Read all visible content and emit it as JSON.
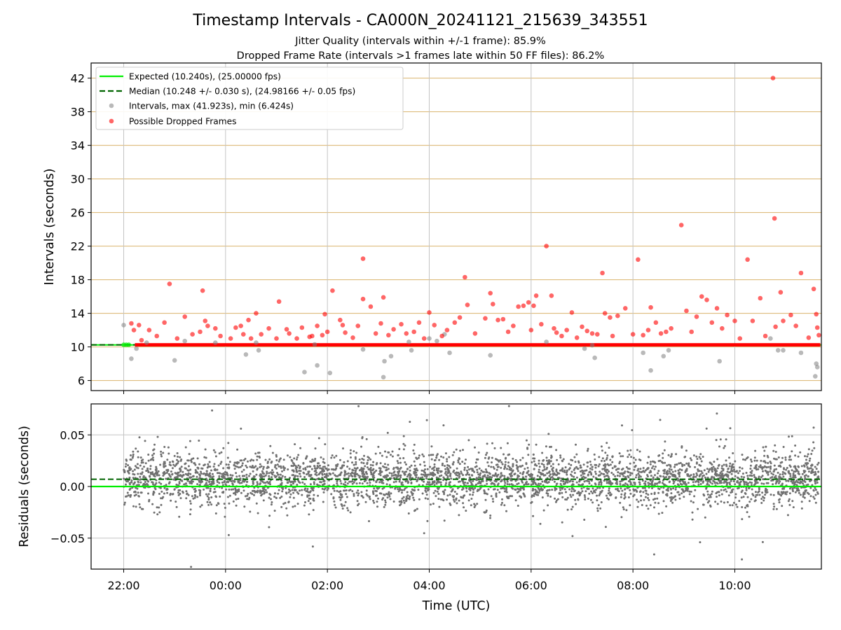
{
  "figure": {
    "title": "Timestamp Intervals - CA000N_20241121_215639_343551",
    "subtitle_jitter": "Jitter Quality (intervals within +/-1 frame): 85.9%",
    "subtitle_dropped": "Dropped Frame Rate (intervals >1 frames late within 50 FF files): 86.2%"
  },
  "legend": {
    "expected": "Expected (10.240s), (25.00000 fps)",
    "median": "Median (10.248 +/- 0.030 s), (24.98166 +/- 0.05 fps)",
    "intervals": "Intervals, max (41.923s), min (6.424s)",
    "dropped": "Possible Dropped Frames"
  },
  "colors": {
    "expected": "#00ee00",
    "median": "#006400",
    "intervals": "#808080",
    "dropped": "#ff0000",
    "residuals": "#707070",
    "hgrid_top": "#d9b36b",
    "vgrid": "#c4c4c4"
  },
  "chart_data": [
    {
      "type": "scatter",
      "ylabel": "Intervals (seconds)",
      "ylim": [
        4.8,
        43.8
      ],
      "yticks": [
        6,
        10,
        14,
        18,
        22,
        26,
        30,
        34,
        38,
        42
      ],
      "ytick_labels": [
        "6",
        "10",
        "14",
        "18",
        "22",
        "26",
        "30",
        "34",
        "38",
        "42"
      ],
      "xlim_hours": [
        -2.64,
        11.7
      ],
      "expected_line": 10.24,
      "median_line": 10.248,
      "baseline_band": [
        10.05,
        10.45
      ],
      "legend_position": "upper left",
      "grid": true,
      "series": [
        {
          "name": "Intervals, max (41.923s), min (6.424s)",
          "points": [
            [
              -2.0,
              12.6
            ],
            [
              -1.85,
              8.6
            ],
            [
              -1.75,
              9.8
            ],
            [
              -1.55,
              10.5
            ],
            [
              -1.0,
              8.4
            ],
            [
              -0.8,
              10.7
            ],
            [
              -0.2,
              10.5
            ],
            [
              0.4,
              9.1
            ],
            [
              0.6,
              10.5
            ],
            [
              0.65,
              9.6
            ],
            [
              1.55,
              7.0
            ],
            [
              1.8,
              7.8
            ],
            [
              1.75,
              10.3
            ],
            [
              2.05,
              6.9
            ],
            [
              2.7,
              9.7
            ],
            [
              3.1,
              6.4
            ],
            [
              3.12,
              8.3
            ],
            [
              3.25,
              8.9
            ],
            [
              3.6,
              10.6
            ],
            [
              3.65,
              9.6
            ],
            [
              4.0,
              11.0
            ],
            [
              4.15,
              10.7
            ],
            [
              4.3,
              11.5
            ],
            [
              4.4,
              9.3
            ],
            [
              5.2,
              9.0
            ],
            [
              6.3,
              10.6
            ],
            [
              7.05,
              9.8
            ],
            [
              7.25,
              8.7
            ],
            [
              7.2,
              10.2
            ],
            [
              8.2,
              9.3
            ],
            [
              8.35,
              7.2
            ],
            [
              8.6,
              8.9
            ],
            [
              8.7,
              9.6
            ],
            [
              9.7,
              8.3
            ],
            [
              10.7,
              11.0
            ],
            [
              10.85,
              9.6
            ],
            [
              10.95,
              9.6
            ],
            [
              11.3,
              9.3
            ],
            [
              11.6,
              8.0
            ],
            [
              11.58,
              6.5
            ],
            [
              11.62,
              7.6
            ]
          ]
        },
        {
          "name": "Possible Dropped Frames",
          "points": [
            [
              -1.85,
              12.8
            ],
            [
              -1.8,
              12.0
            ],
            [
              -1.7,
              12.6
            ],
            [
              -1.65,
              10.8
            ],
            [
              -1.5,
              12.0
            ],
            [
              -1.35,
              11.3
            ],
            [
              -1.2,
              12.9
            ],
            [
              -1.1,
              17.5
            ],
            [
              -0.95,
              11.0
            ],
            [
              -0.8,
              13.6
            ],
            [
              -0.65,
              11.5
            ],
            [
              -0.5,
              11.8
            ],
            [
              -0.45,
              16.7
            ],
            [
              -0.4,
              13.1
            ],
            [
              -0.35,
              12.5
            ],
            [
              -0.2,
              12.2
            ],
            [
              -0.1,
              11.3
            ],
            [
              0.1,
              11.0
            ],
            [
              0.2,
              12.3
            ],
            [
              0.3,
              12.5
            ],
            [
              0.35,
              11.5
            ],
            [
              0.45,
              13.2
            ],
            [
              0.5,
              11.0
            ],
            [
              0.6,
              14.0
            ],
            [
              0.7,
              11.5
            ],
            [
              0.85,
              12.2
            ],
            [
              1.0,
              11.0
            ],
            [
              1.05,
              15.4
            ],
            [
              1.2,
              12.1
            ],
            [
              1.25,
              11.6
            ],
            [
              1.4,
              11.0
            ],
            [
              1.5,
              12.3
            ],
            [
              1.65,
              11.2
            ],
            [
              1.7,
              11.3
            ],
            [
              1.8,
              12.5
            ],
            [
              1.9,
              11.4
            ],
            [
              1.95,
              13.9
            ],
            [
              2.0,
              11.8
            ],
            [
              2.1,
              16.7
            ],
            [
              2.25,
              13.2
            ],
            [
              2.3,
              12.6
            ],
            [
              2.35,
              11.7
            ],
            [
              2.5,
              11.1
            ],
            [
              2.6,
              12.5
            ],
            [
              2.7,
              20.5
            ],
            [
              2.7,
              15.7
            ],
            [
              2.85,
              14.8
            ],
            [
              2.95,
              11.6
            ],
            [
              3.05,
              12.8
            ],
            [
              3.1,
              15.9
            ],
            [
              3.2,
              11.4
            ],
            [
              3.3,
              12.1
            ],
            [
              3.45,
              12.7
            ],
            [
              3.55,
              11.6
            ],
            [
              3.7,
              11.8
            ],
            [
              3.8,
              12.9
            ],
            [
              3.9,
              11.0
            ],
            [
              4.0,
              14.1
            ],
            [
              4.1,
              12.6
            ],
            [
              4.25,
              11.3
            ],
            [
              4.35,
              12.0
            ],
            [
              4.5,
              12.9
            ],
            [
              4.6,
              13.5
            ],
            [
              4.7,
              18.3
            ],
            [
              4.75,
              15.0
            ],
            [
              4.9,
              11.6
            ],
            [
              5.1,
              13.4
            ],
            [
              5.2,
              16.4
            ],
            [
              5.25,
              15.1
            ],
            [
              5.35,
              13.2
            ],
            [
              5.45,
              13.3
            ],
            [
              5.55,
              11.8
            ],
            [
              5.65,
              12.5
            ],
            [
              5.75,
              14.8
            ],
            [
              5.85,
              14.9
            ],
            [
              5.95,
              15.3
            ],
            [
              6.0,
              12.0
            ],
            [
              6.05,
              14.9
            ],
            [
              6.1,
              16.1
            ],
            [
              6.2,
              12.7
            ],
            [
              6.3,
              22.0
            ],
            [
              6.4,
              16.1
            ],
            [
              6.45,
              12.2
            ],
            [
              6.5,
              11.7
            ],
            [
              6.6,
              11.3
            ],
            [
              6.7,
              12.0
            ],
            [
              6.8,
              14.1
            ],
            [
              6.9,
              11.1
            ],
            [
              7.0,
              12.4
            ],
            [
              7.1,
              11.9
            ],
            [
              7.2,
              11.6
            ],
            [
              7.3,
              11.5
            ],
            [
              7.4,
              18.8
            ],
            [
              7.45,
              14.0
            ],
            [
              7.55,
              13.5
            ],
            [
              7.6,
              11.3
            ],
            [
              7.7,
              13.7
            ],
            [
              7.85,
              14.6
            ],
            [
              8.0,
              11.5
            ],
            [
              8.1,
              20.4
            ],
            [
              8.2,
              11.4
            ],
            [
              8.3,
              12.0
            ],
            [
              8.35,
              14.7
            ],
            [
              8.45,
              12.9
            ],
            [
              8.55,
              11.6
            ],
            [
              8.65,
              11.8
            ],
            [
              8.75,
              12.2
            ],
            [
              8.95,
              24.5
            ],
            [
              9.05,
              14.3
            ],
            [
              9.15,
              11.8
            ],
            [
              9.25,
              13.6
            ],
            [
              9.35,
              16.0
            ],
            [
              9.45,
              15.6
            ],
            [
              9.55,
              12.9
            ],
            [
              9.65,
              14.6
            ],
            [
              9.75,
              12.2
            ],
            [
              9.85,
              13.8
            ],
            [
              10.0,
              13.1
            ],
            [
              10.1,
              11.0
            ],
            [
              10.25,
              20.4
            ],
            [
              10.35,
              13.1
            ],
            [
              10.5,
              15.8
            ],
            [
              10.6,
              11.3
            ],
            [
              10.75,
              42.0
            ],
            [
              10.78,
              25.3
            ],
            [
              10.8,
              12.4
            ],
            [
              10.9,
              16.5
            ],
            [
              10.95,
              13.1
            ],
            [
              11.1,
              13.8
            ],
            [
              11.2,
              12.5
            ],
            [
              11.3,
              18.8
            ],
            [
              11.45,
              11.1
            ],
            [
              11.55,
              16.9
            ],
            [
              11.6,
              13.9
            ],
            [
              11.62,
              12.3
            ],
            [
              11.65,
              11.4
            ]
          ]
        }
      ]
    },
    {
      "type": "scatter",
      "xlabel": "Time (UTC)",
      "ylabel": "Residuals (seconds)",
      "ylim": [
        -0.08,
        0.08
      ],
      "yticks": [
        -0.05,
        0.0,
        0.05
      ],
      "ytick_labels": [
        "−0.05",
        "0.00",
        "0.05"
      ],
      "xlim_hours": [
        -2.64,
        11.7
      ],
      "expected_line": 0.0,
      "median_line": 0.007,
      "xticks_hours": [
        -2,
        0,
        2,
        4,
        6,
        8,
        10
      ],
      "xtick_labels": [
        "22:00",
        "00:00",
        "02:00",
        "04:00",
        "06:00",
        "08:00",
        "10:00"
      ],
      "residual_points_count": 4000,
      "residual_points_range": [
        -2.0,
        11.65
      ],
      "residual_spread": "normal, center 0.007, sd about 0.013, clipped to ylim",
      "grid": true
    }
  ]
}
